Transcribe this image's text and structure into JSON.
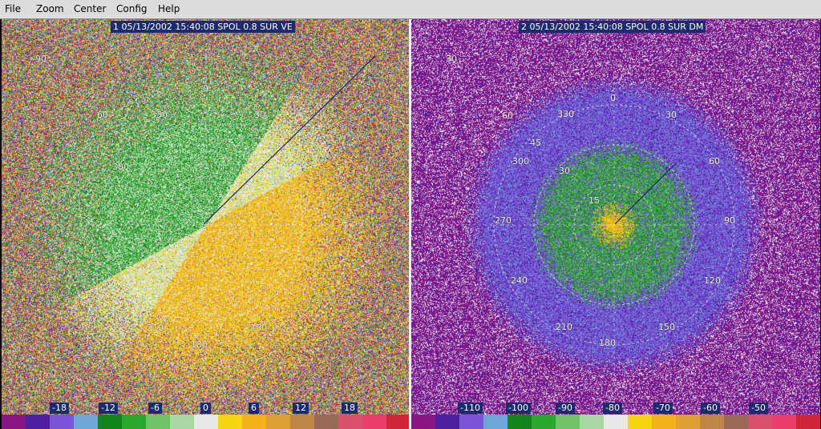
{
  "menu": {
    "items": [
      {
        "id": "file",
        "label": "File"
      },
      {
        "id": "zoom",
        "label": "Zoom"
      },
      {
        "id": "center",
        "label": "Center"
      },
      {
        "id": "config",
        "label": "Config"
      },
      {
        "id": "help",
        "label": "Help"
      }
    ]
  },
  "colors": {
    "scale": [
      "#8a1585",
      "#4e1fa0",
      "#7a55d8",
      "#6fa6d6",
      "#12861c",
      "#2aa82e",
      "#6fc46a",
      "#a9d7a3",
      "#e8e8e8",
      "#f5d60e",
      "#f3b21a",
      "#dea036",
      "#c08445",
      "#996a57",
      "#d8516f",
      "#ea3f6c",
      "#cf2638"
    ],
    "title_bg": "#1d2a6e"
  },
  "panels": [
    {
      "id": "left",
      "title": "1 05/13/2002 15:40:08 SPOL 0.8 SUR VE",
      "field": "VE",
      "ring_labels": [
        "90",
        "60",
        "30",
        "330",
        "300",
        "0",
        "180",
        "210",
        "150"
      ],
      "colorbar_ticks": [
        "-18",
        "-12",
        "-6",
        "0",
        "6",
        "12",
        "18"
      ]
    },
    {
      "id": "right",
      "title": "2 05/13/2002 15:40:08 SPOL 0.8 SUR DM",
      "field": "DM",
      "ring_labels": [
        "30",
        "60",
        "0",
        "330",
        "30",
        "45",
        "300",
        "60",
        "30",
        "15",
        "270",
        "90",
        "240",
        "120",
        "210",
        "150",
        "180"
      ],
      "colorbar_ticks": [
        "-110",
        "-100",
        "-90",
        "-80",
        "-70",
        "-60",
        "-50"
      ]
    }
  ]
}
